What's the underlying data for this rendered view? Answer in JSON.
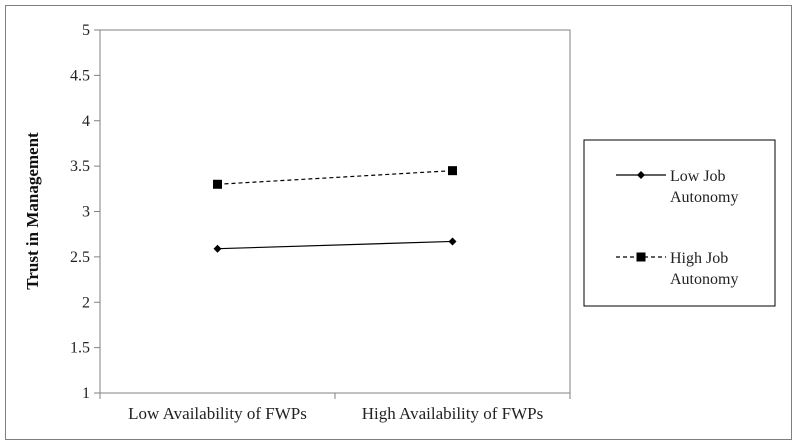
{
  "chart_data": {
    "type": "line",
    "categories": [
      "Low Availability of FWPs",
      "High Availability of FWPs"
    ],
    "series": [
      {
        "name": "Low Job Autonomy",
        "values": [
          2.59,
          2.67
        ],
        "line_style": "solid",
        "marker": "diamond",
        "color": "#000000"
      },
      {
        "name": "High Job Autonomy",
        "values": [
          3.3,
          3.45
        ],
        "line_style": "dashed",
        "marker": "square",
        "color": "#000000"
      }
    ],
    "title": "",
    "xlabel": "",
    "ylabel": "Trust in Management",
    "ylim": [
      1,
      5
    ],
    "yticks": [
      "1",
      "1.5",
      "2",
      "2.5",
      "3",
      "3.5",
      "4",
      "4.5",
      "5"
    ],
    "grid": false,
    "legend": {
      "placement": "right",
      "entries": [
        [
          "Low Job",
          "Autonomy"
        ],
        [
          "High Job",
          "Autonomy"
        ]
      ]
    }
  }
}
